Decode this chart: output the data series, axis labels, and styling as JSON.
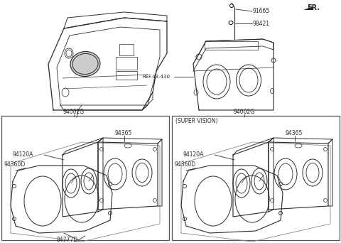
{
  "bg_color": "#ffffff",
  "line_color": "#2a2a2a",
  "fig_width": 4.8,
  "fig_height": 3.42,
  "dpi": 100,
  "fr_label": "FR.",
  "parts": {
    "ref_label": "REF.43-430",
    "part_91665": "91665",
    "part_98421": "98421",
    "part_94002G_left": "94002G",
    "part_94002G_right": "94002G",
    "part_94365_left": "94365",
    "part_94365_right": "94365",
    "part_94120A_left": "94120A",
    "part_94120A_right": "94120A",
    "part_94360D_left": "94360D",
    "part_94360D_right": "94360D",
    "part_84777D": "84777D",
    "super_vision_label": "(SUPER VISION)"
  }
}
